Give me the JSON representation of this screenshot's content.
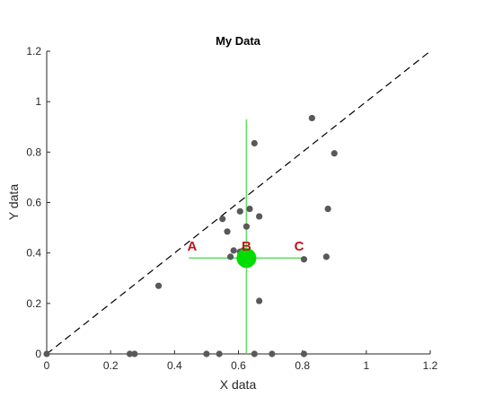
{
  "chart_data": {
    "type": "scatter",
    "title": "My Data",
    "xlabel": "X data",
    "ylabel": "Y data",
    "xlim": [
      0,
      1.2
    ],
    "ylim": [
      0,
      1.2
    ],
    "xticks": [
      "0",
      "0.2",
      "0.4",
      "0.6",
      "0.8",
      "1",
      "1.2"
    ],
    "yticks": [
      "0",
      "0.2",
      "0.4",
      "0.6",
      "0.8",
      "1",
      "1.2"
    ],
    "grid": false,
    "points": [
      {
        "x": 0.0,
        "y": 0.0
      },
      {
        "x": 0.26,
        "y": 0.0
      },
      {
        "x": 0.275,
        "y": 0.0
      },
      {
        "x": 0.5,
        "y": 0.0
      },
      {
        "x": 0.54,
        "y": 0.0
      },
      {
        "x": 0.65,
        "y": 0.0
      },
      {
        "x": 0.705,
        "y": 0.0
      },
      {
        "x": 0.805,
        "y": 0.0
      },
      {
        "x": 0.35,
        "y": 0.27
      },
      {
        "x": 0.665,
        "y": 0.21
      },
      {
        "x": 0.575,
        "y": 0.385
      },
      {
        "x": 0.585,
        "y": 0.41
      },
      {
        "x": 0.605,
        "y": 0.405
      },
      {
        "x": 0.615,
        "y": 0.41
      },
      {
        "x": 0.565,
        "y": 0.485
      },
      {
        "x": 0.55,
        "y": 0.535
      },
      {
        "x": 0.605,
        "y": 0.565
      },
      {
        "x": 0.635,
        "y": 0.575
      },
      {
        "x": 0.665,
        "y": 0.545
      },
      {
        "x": 0.625,
        "y": 0.505
      },
      {
        "x": 0.805,
        "y": 0.375
      },
      {
        "x": 0.875,
        "y": 0.385
      },
      {
        "x": 0.88,
        "y": 0.575
      },
      {
        "x": 0.9,
        "y": 0.795
      },
      {
        "x": 0.65,
        "y": 0.835
      },
      {
        "x": 0.83,
        "y": 0.935
      }
    ],
    "reference_line": {
      "style": "dashed",
      "from": [
        0,
        0
      ],
      "to": [
        1.2,
        1.2
      ],
      "color": "#000000"
    },
    "center_point": {
      "x": 0.625,
      "y": 0.38,
      "color": "#00dd00"
    },
    "crosshair": {
      "color": "#66dd66",
      "horizontal": {
        "y": 0.38,
        "x_from": 0.445,
        "x_to": 0.8
      },
      "vertical": {
        "x": 0.625,
        "y_from": 0.0,
        "y_to": 0.93
      }
    },
    "annotations": [
      {
        "label": "A",
        "x": 0.455,
        "y": 0.41
      },
      {
        "label": "B",
        "x": 0.625,
        "y": 0.41
      },
      {
        "label": "C",
        "x": 0.79,
        "y": 0.41
      }
    ],
    "colors": {
      "points": "#595959",
      "annotation": "#c0141c",
      "axis": "#262626"
    }
  }
}
